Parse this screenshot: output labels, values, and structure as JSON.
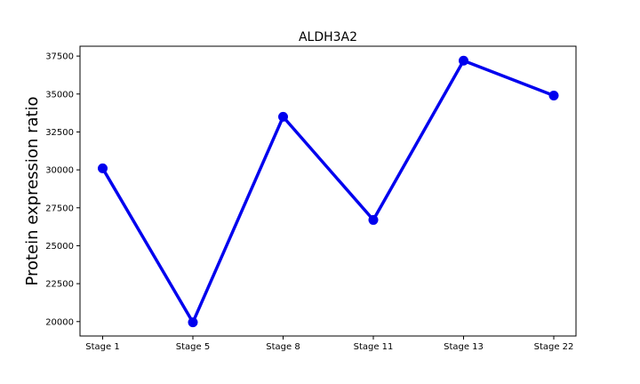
{
  "chart_data": {
    "type": "line",
    "title": "ALDH3A2",
    "xlabel": "",
    "ylabel": "Protein expression ratio",
    "categories": [
      "Stage 1",
      "Stage 5",
      "Stage 8",
      "Stage 11",
      "Stage 13",
      "Stage 22"
    ],
    "series": [
      {
        "values": [
          30100,
          19950,
          33500,
          26700,
          37200,
          34900
        ]
      }
    ],
    "ylim": [
      19050,
      38150
    ],
    "yticks": [
      20000,
      22500,
      25000,
      27500,
      30000,
      32500,
      35000,
      37500
    ],
    "ytick_labels": [
      "20000",
      "22500",
      "25000",
      "27500",
      "30000",
      "32500",
      "35000",
      "37500"
    ],
    "grid": false,
    "legend": "none",
    "line_color": "#0000ee"
  }
}
